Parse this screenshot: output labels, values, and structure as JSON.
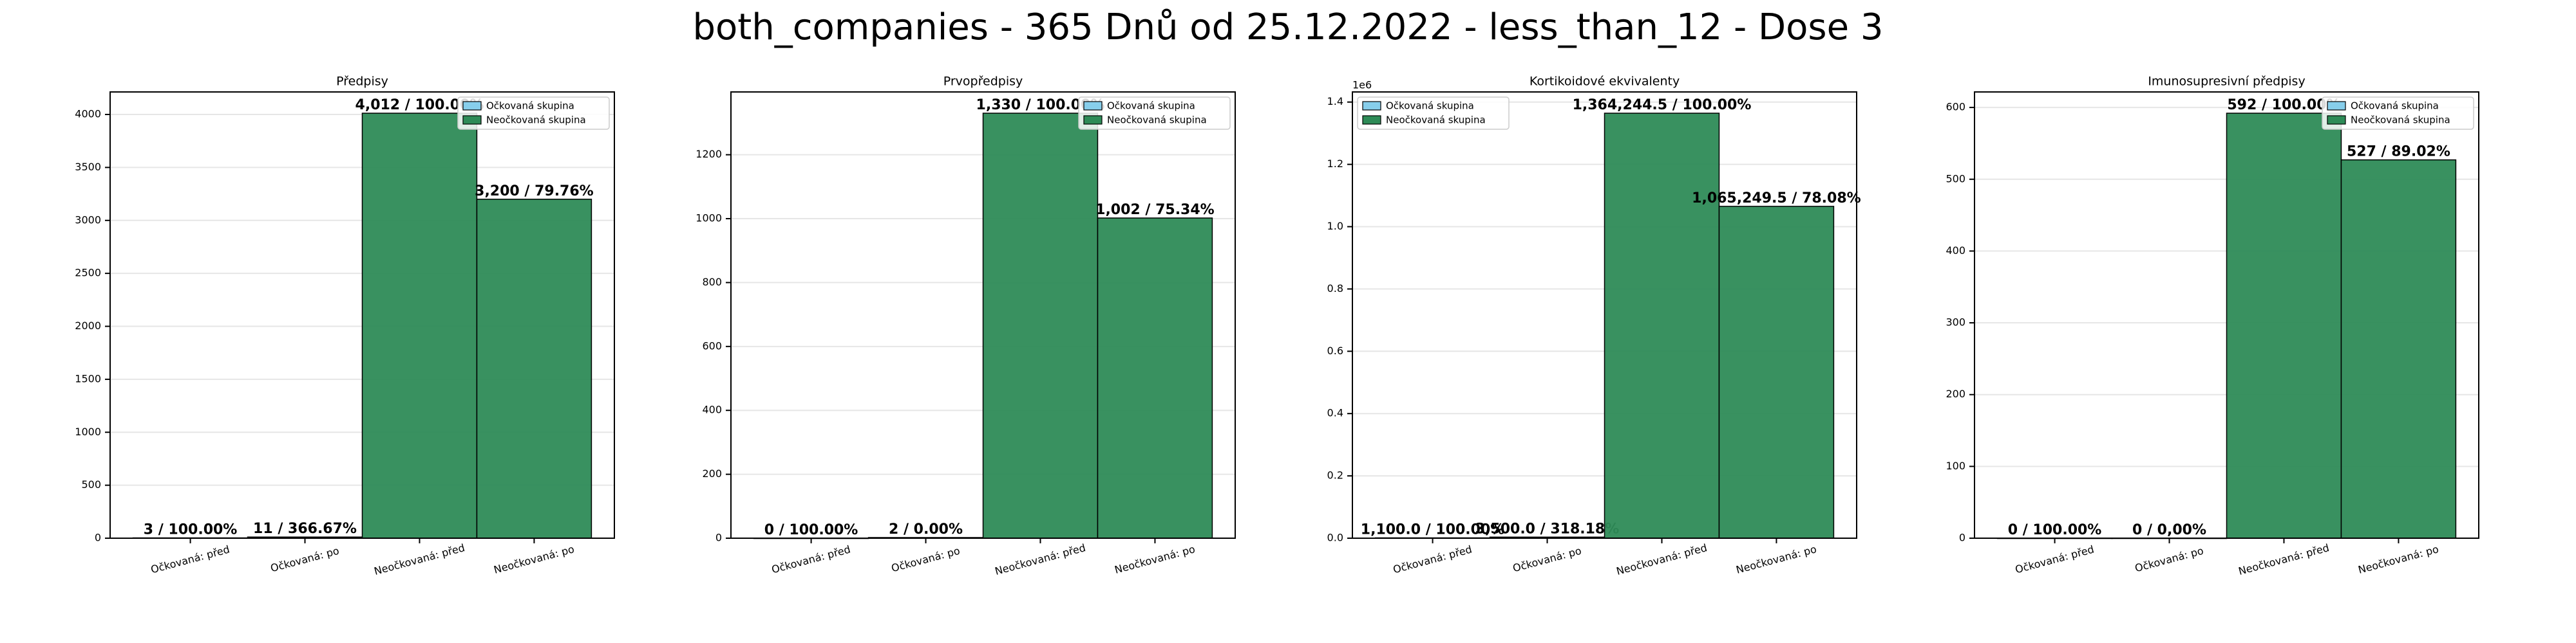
{
  "title": "both_companies - 365 Dnů od 25.12.2022 - less_than_12 - Dose 3",
  "chart_data": [
    {
      "type": "bar",
      "title": "Předpisy",
      "categories": [
        "Očkovaná: před",
        "Očkovaná: po",
        "Neočkovaná: před",
        "Neočkovaná: po"
      ],
      "series": [
        {
          "name": "Očkovaná skupina",
          "color": "#87ceeb",
          "values": [
            3,
            11,
            null,
            null
          ],
          "value_labels": [
            "3 / 100.00%",
            "11 / 366.67%",
            null,
            null
          ]
        },
        {
          "name": "Neočkovaná skupina",
          "color": "#2e8b57",
          "values": [
            null,
            null,
            4012,
            3200
          ],
          "value_labels": [
            null,
            null,
            "4,012 / 100.00%",
            "3,200 / 79.76%"
          ]
        }
      ],
      "ylim": [
        0,
        4212.6
      ],
      "yticks": [
        0,
        500,
        1000,
        1500,
        2000,
        2500,
        3000,
        3500,
        4000
      ],
      "grid": true,
      "legend": "upper right"
    },
    {
      "type": "bar",
      "title": "Prvopředpisy",
      "categories": [
        "Očkovaná: před",
        "Očkovaná: po",
        "Neočkovaná: před",
        "Neočkovaná: po"
      ],
      "series": [
        {
          "name": "Očkovaná skupina",
          "color": "#87ceeb",
          "values": [
            0,
            2,
            null,
            null
          ],
          "value_labels": [
            "0 / 100.00%",
            "2 / 0.00%",
            null,
            null
          ]
        },
        {
          "name": "Neočkovaná skupina",
          "color": "#2e8b57",
          "values": [
            null,
            null,
            1330,
            1002
          ],
          "value_labels": [
            null,
            null,
            "1,330 / 100.00%",
            "1,002 / 75.34%"
          ]
        }
      ],
      "ylim": [
        0,
        1396.5
      ],
      "yticks": [
        0,
        200,
        400,
        600,
        800,
        1000,
        1200
      ],
      "grid": true,
      "legend": "upper right"
    },
    {
      "type": "bar",
      "title": "Kortikoidové ekvivalenty",
      "categories": [
        "Očkovaná: před",
        "Očkovaná: po",
        "Neočkovaná: před",
        "Neočkovaná: po"
      ],
      "series": [
        {
          "name": "Očkovaná skupina",
          "color": "#87ceeb",
          "values": [
            1100.0,
            3500.0,
            null,
            null
          ],
          "value_labels": [
            "1,100.0 / 100.00%",
            "3,500.0 / 318.18%",
            null,
            null
          ]
        },
        {
          "name": "Neočkovaná skupina",
          "color": "#2e8b57",
          "values": [
            null,
            null,
            1364244.5,
            1065249.5
          ],
          "value_labels": [
            null,
            null,
            "1,364,244.5 / 100.00%",
            "1,065,249.5 / 78.08%"
          ]
        }
      ],
      "ylim": [
        0,
        1432456.7
      ],
      "yticks": [
        {
          "value": 0,
          "label": "0.0"
        },
        {
          "value": 200000,
          "label": "0.2"
        },
        {
          "value": 400000,
          "label": "0.4"
        },
        {
          "value": 600000,
          "label": "0.6"
        },
        {
          "value": 800000,
          "label": "0.8"
        },
        {
          "value": 1000000,
          "label": "1.0"
        },
        {
          "value": 1200000,
          "label": "1.2"
        },
        {
          "value": 1400000,
          "label": "1.4"
        }
      ],
      "y_offset_label": "1e6",
      "grid": true,
      "legend": "upper left"
    },
    {
      "type": "bar",
      "title": "Imunosupresivní předpisy",
      "categories": [
        "Očkovaná: před",
        "Očkovaná: po",
        "Neočkovaná: před",
        "Neočkovaná: po"
      ],
      "series": [
        {
          "name": "Očkovaná skupina",
          "color": "#87ceeb",
          "values": [
            0,
            0,
            null,
            null
          ],
          "value_labels": [
            "0 / 100.00%",
            "0 / 0,00%",
            null,
            null
          ]
        },
        {
          "name": "Neočkovaná skupina",
          "color": "#2e8b57",
          "values": [
            null,
            null,
            592,
            527
          ],
          "value_labels": [
            null,
            null,
            "592 / 100.00%",
            "527 / 89.02%"
          ]
        }
      ],
      "ylim": [
        0,
        621.6
      ],
      "yticks": [
        0,
        100,
        200,
        300,
        400,
        500,
        600
      ],
      "grid": true,
      "legend": "upper right"
    }
  ]
}
